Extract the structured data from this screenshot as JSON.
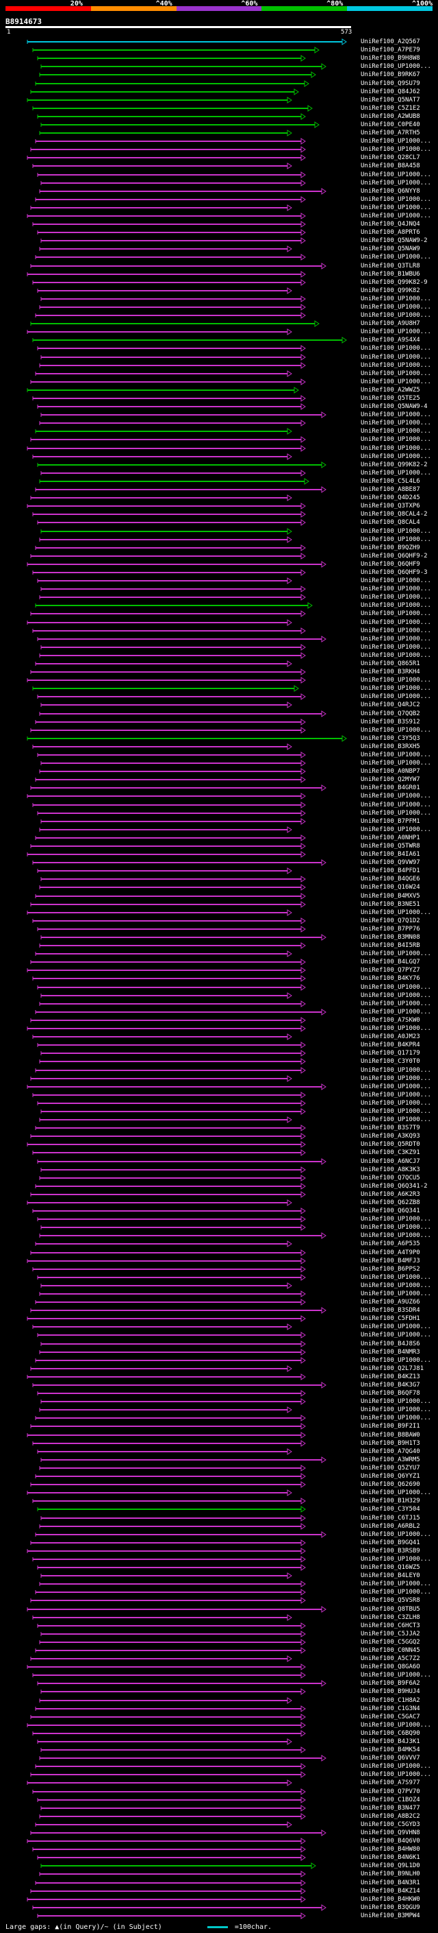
{
  "legend": [
    {
      "label": "20%",
      "color": "#ff0000"
    },
    {
      "label": "^40%",
      "color": "#ff8c00"
    },
    {
      "label": "^60%",
      "color": "#9933cc"
    },
    {
      "label": "^80%",
      "color": "#00c000"
    },
    {
      "label": "^100%",
      "color": "#00c8e0"
    }
  ],
  "query": {
    "id": "B8914673",
    "start": "1",
    "end": "573"
  },
  "footer": {
    "gaps_text": "Large gaps: ▲(in Query)/~ (in Subject)",
    "scale_text": "=100char."
  },
  "hits": [
    {
      "label": "UniRef100_A2Q567",
      "color": "#00c8e0"
    },
    {
      "label": "UniRef100_A7PE79",
      "color": "#00c000"
    },
    {
      "label": "UniRef100_B9H8W8",
      "color": "#00c000"
    },
    {
      "label": "UniRef100_UP1000...",
      "color": "#00c000"
    },
    {
      "label": "UniRef100_B9RK67",
      "color": "#00c000"
    },
    {
      "label": "UniRef100_Q9SU79",
      "color": "#00c000"
    },
    {
      "label": "UniRef100_Q84J62",
      "color": "#00c000"
    },
    {
      "label": "UniRef100_Q5NAT7",
      "color": "#00c000"
    },
    {
      "label": "UniRef100_C5Z1E2",
      "color": "#00c000"
    },
    {
      "label": "UniRef100_A2WUB8",
      "color": "#00c000"
    },
    {
      "label": "UniRef100_C0PE40",
      "color": "#00c000"
    },
    {
      "label": "UniRef100_A7RTH5",
      "color": "#00c000"
    },
    {
      "label": "UniRef100_UP1000...",
      "color": "#cc33cc"
    },
    {
      "label": "UniRef100_UP1000...",
      "color": "#cc33cc"
    },
    {
      "label": "UniRef100_Q28CL7",
      "color": "#cc33cc"
    },
    {
      "label": "UniRef100_B8A458",
      "color": "#cc33cc"
    },
    {
      "label": "UniRef100_UP1000...",
      "color": "#cc33cc"
    },
    {
      "label": "UniRef100_UP1000...",
      "color": "#cc33cc"
    },
    {
      "label": "UniRef100_Q6NYY8",
      "color": "#cc33cc"
    },
    {
      "label": "UniRef100_UP1000...",
      "color": "#cc33cc"
    },
    {
      "label": "UniRef100_UP1000...",
      "color": "#cc33cc"
    },
    {
      "label": "UniRef100_UP1000...",
      "color": "#cc33cc"
    },
    {
      "label": "UniRef100_Q4JNQ4",
      "color": "#cc33cc"
    },
    {
      "label": "UniRef100_A8PRT6",
      "color": "#cc33cc"
    },
    {
      "label": "UniRef100_Q5NAW9-2",
      "color": "#cc33cc"
    },
    {
      "label": "UniRef100_Q5NAW9",
      "color": "#cc33cc"
    },
    {
      "label": "UniRef100_UP1000...",
      "color": "#cc33cc"
    },
    {
      "label": "UniRef100_Q3TLR8",
      "color": "#cc33cc"
    },
    {
      "label": "UniRef100_B1WBU6",
      "color": "#cc33cc"
    },
    {
      "label": "UniRef100_Q99K82-9",
      "color": "#cc33cc"
    },
    {
      "label": "UniRef100_Q99K82",
      "color": "#cc33cc"
    },
    {
      "label": "UniRef100_UP1000...",
      "color": "#cc33cc"
    },
    {
      "label": "UniRef100_UP1000...",
      "color": "#cc33cc"
    },
    {
      "label": "UniRef100_UP1000...",
      "color": "#cc33cc"
    },
    {
      "label": "UniRef100_A9U8H7",
      "color": "#00c000"
    },
    {
      "label": "UniRef100_UP1000...",
      "color": "#cc33cc"
    },
    {
      "label": "UniRef100_A9S4X4",
      "color": "#00c000"
    },
    {
      "label": "UniRef100_UP1000...",
      "color": "#cc33cc"
    },
    {
      "label": "UniRef100_UP1000...",
      "color": "#cc33cc"
    },
    {
      "label": "UniRef100_UP1000...",
      "color": "#cc33cc"
    },
    {
      "label": "UniRef100_UP1000...",
      "color": "#cc33cc"
    },
    {
      "label": "UniRef100_UP1000...",
      "color": "#cc33cc"
    },
    {
      "label": "UniRef100_A2WWZ5",
      "color": "#00c000"
    },
    {
      "label": "UniRef100_Q5TE25",
      "color": "#cc33cc"
    },
    {
      "label": "UniRef100_Q5NAW9-4",
      "color": "#cc33cc"
    },
    {
      "label": "UniRef100_UP1000...",
      "color": "#cc33cc"
    },
    {
      "label": "UniRef100_UP1000...",
      "color": "#cc33cc"
    },
    {
      "label": "UniRef100_UP1000...",
      "color": "#00c000"
    },
    {
      "label": "UniRef100_UP1000...",
      "color": "#cc33cc"
    },
    {
      "label": "UniRef100_UP1000...",
      "color": "#cc33cc"
    },
    {
      "label": "UniRef100_UP1000...",
      "color": "#cc33cc"
    },
    {
      "label": "UniRef100_Q99K82-2",
      "color": "#00c000"
    },
    {
      "label": "UniRef100_UP1000...",
      "color": "#cc33cc"
    },
    {
      "label": "UniRef100_C5L4L6",
      "color": "#00c000"
    },
    {
      "label": "UniRef100_A8BE87",
      "color": "#cc33cc"
    },
    {
      "label": "UniRef100_Q4D245",
      "color": "#cc33cc"
    },
    {
      "label": "UniRef100_Q3TXP6",
      "color": "#cc33cc"
    },
    {
      "label": "UniRef100_Q8CAL4-2",
      "color": "#cc33cc"
    },
    {
      "label": "UniRef100_Q8CAL4",
      "color": "#cc33cc"
    },
    {
      "label": "UniRef100_UP1000...",
      "color": "#00c000"
    },
    {
      "label": "UniRef100_UP1000...",
      "color": "#cc33cc"
    },
    {
      "label": "UniRef100_B9QZH9",
      "color": "#cc33cc"
    },
    {
      "label": "UniRef100_Q6QHF9-2",
      "color": "#cc33cc"
    },
    {
      "label": "UniRef100_Q6QHF9",
      "color": "#cc33cc"
    },
    {
      "label": "UniRef100_Q6QHF9-3",
      "color": "#cc33cc"
    },
    {
      "label": "UniRef100_UP1000...",
      "color": "#cc33cc"
    },
    {
      "label": "UniRef100_UP1000...",
      "color": "#cc33cc"
    },
    {
      "label": "UniRef100_UP1000...",
      "color": "#cc33cc"
    },
    {
      "label": "UniRef100_UP1000...",
      "color": "#00c000"
    },
    {
      "label": "UniRef100_UP1000...",
      "color": "#cc33cc"
    },
    {
      "label": "UniRef100_UP1000...",
      "color": "#cc33cc"
    },
    {
      "label": "UniRef100_UP1000...",
      "color": "#cc33cc"
    },
    {
      "label": "UniRef100_UP1000...",
      "color": "#cc33cc"
    },
    {
      "label": "UniRef100_UP1000...",
      "color": "#cc33cc"
    },
    {
      "label": "UniRef100_UP1000...",
      "color": "#cc33cc"
    },
    {
      "label": "UniRef100_Q865R1",
      "color": "#cc33cc"
    },
    {
      "label": "UniRef100_B3RKH4",
      "color": "#cc33cc"
    },
    {
      "label": "UniRef100_UP1000...",
      "color": "#cc33cc"
    },
    {
      "label": "UniRef100_UP1000...",
      "color": "#00c000"
    },
    {
      "label": "UniRef100_UP1000...",
      "color": "#cc33cc"
    },
    {
      "label": "UniRef100_Q4RJC2",
      "color": "#cc33cc"
    },
    {
      "label": "UniRef100_Q7QQB2",
      "color": "#cc33cc"
    },
    {
      "label": "UniRef100_B3S912",
      "color": "#cc33cc"
    },
    {
      "label": "UniRef100_UP1000...",
      "color": "#cc33cc"
    },
    {
      "label": "UniRef100_C3Y5Q3",
      "color": "#00c000"
    },
    {
      "label": "UniRef100_B3RXH5",
      "color": "#cc33cc"
    },
    {
      "label": "UniRef100_UP1000...",
      "color": "#cc33cc"
    },
    {
      "label": "UniRef100_UP1000...",
      "color": "#cc33cc"
    },
    {
      "label": "UniRef100_A0NBP7",
      "color": "#cc33cc"
    },
    {
      "label": "UniRef100_Q2MYW7",
      "color": "#cc33cc"
    },
    {
      "label": "UniRef100_B4GR01",
      "color": "#cc33cc"
    },
    {
      "label": "UniRef100_UP1000...",
      "color": "#cc33cc"
    },
    {
      "label": "UniRef100_UP1000...",
      "color": "#cc33cc"
    },
    {
      "label": "UniRef100_UP1000...",
      "color": "#cc33cc"
    },
    {
      "label": "UniRef100_B7PFM1",
      "color": "#cc33cc"
    },
    {
      "label": "UniRef100_UP1000...",
      "color": "#cc33cc"
    },
    {
      "label": "UniRef100_A0NHP1",
      "color": "#cc33cc"
    },
    {
      "label": "UniRef100_Q5TWR8",
      "color": "#cc33cc"
    },
    {
      "label": "UniRef100_B4IA61",
      "color": "#cc33cc"
    },
    {
      "label": "UniRef100_Q9VW97",
      "color": "#cc33cc"
    },
    {
      "label": "UniRef100_B4PFD1",
      "color": "#cc33cc"
    },
    {
      "label": "UniRef100_B4QGE6",
      "color": "#cc33cc"
    },
    {
      "label": "UniRef100_Q16W24",
      "color": "#cc33cc"
    },
    {
      "label": "UniRef100_B4MXV5",
      "color": "#cc33cc"
    },
    {
      "label": "UniRef100_B3NE51",
      "color": "#cc33cc"
    },
    {
      "label": "UniRef100_UP1000...",
      "color": "#cc33cc"
    },
    {
      "label": "UniRef100_Q7Q1D2",
      "color": "#cc33cc"
    },
    {
      "label": "UniRef100_B7PP76",
      "color": "#cc33cc"
    },
    {
      "label": "UniRef100_B3MN08",
      "color": "#cc33cc"
    },
    {
      "label": "UniRef100_B4I5RB",
      "color": "#cc33cc"
    },
    {
      "label": "UniRef100_UP1000...",
      "color": "#cc33cc"
    },
    {
      "label": "UniRef100_B4LGQ7",
      "color": "#cc33cc"
    },
    {
      "label": "UniRef100_Q7PYZ7",
      "color": "#cc33cc"
    },
    {
      "label": "UniRef100_B4KY76",
      "color": "#cc33cc"
    },
    {
      "label": "UniRef100_UP1000...",
      "color": "#cc33cc"
    },
    {
      "label": "UniRef100_UP1000...",
      "color": "#cc33cc"
    },
    {
      "label": "UniRef100_UP1000...",
      "color": "#cc33cc"
    },
    {
      "label": "UniRef100_UP1000...",
      "color": "#cc33cc"
    },
    {
      "label": "UniRef100_A7SKW0",
      "color": "#cc33cc"
    },
    {
      "label": "UniRef100_UP1000...",
      "color": "#cc33cc"
    },
    {
      "label": "UniRef100_A0JM23",
      "color": "#cc33cc"
    },
    {
      "label": "UniRef100_B4KPR4",
      "color": "#cc33cc"
    },
    {
      "label": "UniRef100_Q17179",
      "color": "#cc33cc"
    },
    {
      "label": "UniRef100_C3Y0T0",
      "color": "#cc33cc"
    },
    {
      "label": "UniRef100_UP1000...",
      "color": "#cc33cc"
    },
    {
      "label": "UniRef100_UP1000...",
      "color": "#cc33cc"
    },
    {
      "label": "UniRef100_UP1000...",
      "color": "#cc33cc"
    },
    {
      "label": "UniRef100_UP1000...",
      "color": "#cc33cc"
    },
    {
      "label": "UniRef100_UP1000...",
      "color": "#cc33cc"
    },
    {
      "label": "UniRef100_UP1000...",
      "color": "#cc33cc"
    },
    {
      "label": "UniRef100_UP1000...",
      "color": "#cc33cc"
    },
    {
      "label": "UniRef100_B3S7T9",
      "color": "#cc33cc"
    },
    {
      "label": "UniRef100_A3KQ93",
      "color": "#cc33cc"
    },
    {
      "label": "UniRef100_Q5RDT0",
      "color": "#cc33cc"
    },
    {
      "label": "UniRef100_C3KZ91",
      "color": "#cc33cc"
    },
    {
      "label": "UniRef100_A6NCJ7",
      "color": "#cc33cc"
    },
    {
      "label": "UniRef100_A8K3K3",
      "color": "#cc33cc"
    },
    {
      "label": "UniRef100_Q7QCU5",
      "color": "#cc33cc"
    },
    {
      "label": "UniRef100_Q6Q341-2",
      "color": "#cc33cc"
    },
    {
      "label": "UniRef100_A6K2R3",
      "color": "#cc33cc"
    },
    {
      "label": "UniRef100_Q62ZB8",
      "color": "#cc33cc"
    },
    {
      "label": "UniRef100_Q6Q341",
      "color": "#cc33cc"
    },
    {
      "label": "UniRef100_UP1000...",
      "color": "#cc33cc"
    },
    {
      "label": "UniRef100_UP1000...",
      "color": "#cc33cc"
    },
    {
      "label": "UniRef100_UP1000...",
      "color": "#cc33cc"
    },
    {
      "label": "UniRef100_A6P535",
      "color": "#cc33cc"
    },
    {
      "label": "UniRef100_A4T9P0",
      "color": "#cc33cc"
    },
    {
      "label": "UniRef100_B4MFJ3",
      "color": "#cc33cc"
    },
    {
      "label": "UniRef100_B6PPS2",
      "color": "#cc33cc"
    },
    {
      "label": "UniRef100_UP1000...",
      "color": "#cc33cc"
    },
    {
      "label": "UniRef100_UP1000...",
      "color": "#cc33cc"
    },
    {
      "label": "UniRef100_UP1000...",
      "color": "#cc33cc"
    },
    {
      "label": "UniRef100_A9UZ66",
      "color": "#cc33cc"
    },
    {
      "label": "UniRef100_B3SDR4",
      "color": "#cc33cc"
    },
    {
      "label": "UniRef100_C5FDH1",
      "color": "#cc33cc"
    },
    {
      "label": "UniRef100_UP1000...",
      "color": "#cc33cc"
    },
    {
      "label": "UniRef100_UP1000...",
      "color": "#cc33cc"
    },
    {
      "label": "UniRef100_B4J8S6",
      "color": "#cc33cc"
    },
    {
      "label": "UniRef100_B4NMR3",
      "color": "#cc33cc"
    },
    {
      "label": "UniRef100_UP1000...",
      "color": "#cc33cc"
    },
    {
      "label": "UniRef100_Q2L7J81",
      "color": "#cc33cc"
    },
    {
      "label": "UniRef100_B4KZ13",
      "color": "#cc33cc"
    },
    {
      "label": "UniRef100_B4K3G7",
      "color": "#cc33cc"
    },
    {
      "label": "UniRef100_B6QF78",
      "color": "#cc33cc"
    },
    {
      "label": "UniRef100_UP1000...",
      "color": "#cc33cc"
    },
    {
      "label": "UniRef100_UP1000...",
      "color": "#cc33cc"
    },
    {
      "label": "UniRef100_UP1000...",
      "color": "#cc33cc"
    },
    {
      "label": "UniRef100_B9F2I1",
      "color": "#cc33cc"
    },
    {
      "label": "UniRef100_B8BAW0",
      "color": "#cc33cc"
    },
    {
      "label": "UniRef100_B9H1T3",
      "color": "#cc33cc"
    },
    {
      "label": "UniRef100_A7QG40",
      "color": "#cc33cc"
    },
    {
      "label": "UniRef100_A3WRM5",
      "color": "#cc33cc"
    },
    {
      "label": "UniRef100_Q5ZYU7",
      "color": "#cc33cc"
    },
    {
      "label": "UniRef100_Q6YYZ1",
      "color": "#cc33cc"
    },
    {
      "label": "UniRef100_Q62690",
      "color": "#cc33cc"
    },
    {
      "label": "UniRef100_UP1000...",
      "color": "#cc33cc"
    },
    {
      "label": "UniRef100_B1H329",
      "color": "#cc33cc"
    },
    {
      "label": "UniRef100_C3Y504",
      "color": "#00c000"
    },
    {
      "label": "UniRef100_C6TJ15",
      "color": "#cc33cc"
    },
    {
      "label": "UniRef100_A6RBL2",
      "color": "#cc33cc"
    },
    {
      "label": "UniRef100_UP1000...",
      "color": "#cc33cc"
    },
    {
      "label": "UniRef100_B9GQ41",
      "color": "#cc33cc"
    },
    {
      "label": "UniRef100_B3RSB9",
      "color": "#cc33cc"
    },
    {
      "label": "UniRef100_UP1000...",
      "color": "#cc33cc"
    },
    {
      "label": "UniRef100_Q16WZ5",
      "color": "#cc33cc"
    },
    {
      "label": "UniRef100_B4LEY0",
      "color": "#cc33cc"
    },
    {
      "label": "UniRef100_UP1000...",
      "color": "#cc33cc"
    },
    {
      "label": "UniRef100_UP1000...",
      "color": "#cc33cc"
    },
    {
      "label": "UniRef100_Q5VSR8",
      "color": "#cc33cc"
    },
    {
      "label": "UniRef100_Q8TBU5",
      "color": "#cc33cc"
    },
    {
      "label": "UniRef100_C3ZLH8",
      "color": "#cc33cc"
    },
    {
      "label": "UniRef100_C6HCT3",
      "color": "#cc33cc"
    },
    {
      "label": "UniRef100_C5JJA2",
      "color": "#cc33cc"
    },
    {
      "label": "UniRef100_C5GGQ2",
      "color": "#cc33cc"
    },
    {
      "label": "UniRef100_C0NN45",
      "color": "#cc33cc"
    },
    {
      "label": "UniRef100_A5C7Z2",
      "color": "#cc33cc"
    },
    {
      "label": "UniRef100_Q8GA6O",
      "color": "#cc33cc"
    },
    {
      "label": "UniRef100_UP1000...",
      "color": "#cc33cc"
    },
    {
      "label": "UniRef100_B9F6A2",
      "color": "#cc33cc"
    },
    {
      "label": "UniRef100_B9HUJ4",
      "color": "#cc33cc"
    },
    {
      "label": "UniRef100_C1H8A2",
      "color": "#cc33cc"
    },
    {
      "label": "UniRef100_C1G3N4",
      "color": "#cc33cc"
    },
    {
      "label": "UniRef100_C5GAC7",
      "color": "#cc33cc"
    },
    {
      "label": "UniRef100_UP1000...",
      "color": "#cc33cc"
    },
    {
      "label": "UniRef100_C6BQ90",
      "color": "#cc33cc"
    },
    {
      "label": "UniRef100_B4J3K1",
      "color": "#cc33cc"
    },
    {
      "label": "UniRef100_B4MK54",
      "color": "#cc33cc"
    },
    {
      "label": "UniRef100_Q6VVV7",
      "color": "#cc33cc"
    },
    {
      "label": "UniRef100_UP1000...",
      "color": "#cc33cc"
    },
    {
      "label": "UniRef100_UP1000...",
      "color": "#cc33cc"
    },
    {
      "label": "UniRef100_A7S977",
      "color": "#cc33cc"
    },
    {
      "label": "UniRef100_Q7PV70",
      "color": "#cc33cc"
    },
    {
      "label": "UniRef100_C1BOZ4",
      "color": "#cc33cc"
    },
    {
      "label": "UniRef100_B3N477",
      "color": "#cc33cc"
    },
    {
      "label": "UniRef100_A8B2C2",
      "color": "#cc33cc"
    },
    {
      "label": "UniRef100_C5GYD3",
      "color": "#cc33cc"
    },
    {
      "label": "UniRef100_Q9VHN8",
      "color": "#cc33cc"
    },
    {
      "label": "UniRef100_B4Q6V0",
      "color": "#cc33cc"
    },
    {
      "label": "UniRef100_B4HW80",
      "color": "#cc33cc"
    },
    {
      "label": "UniRef100_B4N6K1",
      "color": "#cc33cc"
    },
    {
      "label": "UniRef100_Q9L1D0",
      "color": "#00c000"
    },
    {
      "label": "UniRef100_B9NLH0",
      "color": "#cc33cc"
    },
    {
      "label": "UniRef100_B4N3R1",
      "color": "#cc33cc"
    },
    {
      "label": "UniRef100_B4KZ14",
      "color": "#cc33cc"
    },
    {
      "label": "UniRef100_B4HKW0",
      "color": "#cc33cc"
    },
    {
      "label": "UniRef100_B3QGU9",
      "color": "#cc33cc"
    },
    {
      "label": "UniRef100_B3MPW4",
      "color": "#cc33cc"
    }
  ]
}
